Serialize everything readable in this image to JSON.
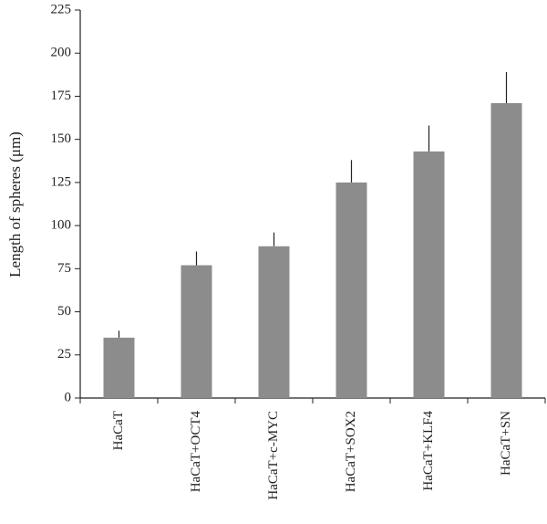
{
  "chart_data": {
    "type": "bar",
    "ylabel": "Length of spheres (μm)",
    "categories": [
      "HaCaT",
      "HaCaT+OCT4",
      "HaCaT+c-MYC",
      "HaCaT+SOX2",
      "HaCaT+KLF4",
      "HaCaT+SN"
    ],
    "values": [
      35,
      77,
      88,
      125,
      143,
      171
    ],
    "errors": [
      4,
      8,
      8,
      13,
      15,
      18
    ],
    "color": "#8c8c8c",
    "ylim": [
      0,
      225
    ],
    "yticks": [
      0,
      25,
      50,
      75,
      100,
      125,
      150,
      175,
      200,
      225
    ]
  }
}
